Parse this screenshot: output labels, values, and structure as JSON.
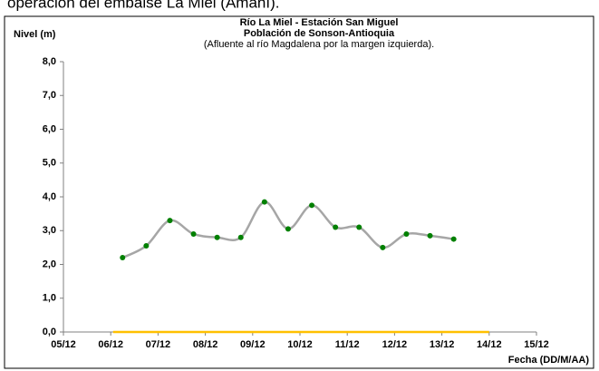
{
  "caption": "operación del embalse La Miel (Amaní).",
  "chart_data": {
    "type": "line",
    "title": "Río La Miel  - Estación San Miguel",
    "subtitle": "Población de Sonson-Antioquia",
    "note": "(Afluente al río Magdalena por la margen izquierda).",
    "y_label": "Nivel (m)",
    "x_label": "Fecha (DD/M/AA)",
    "xlim": [
      0,
      10
    ],
    "ylim": [
      0,
      8
    ],
    "xticks": [
      {
        "value": 0,
        "label": "05/12"
      },
      {
        "value": 1,
        "label": "06/12"
      },
      {
        "value": 2,
        "label": "07/12"
      },
      {
        "value": 3,
        "label": "08/12"
      },
      {
        "value": 4,
        "label": "09/12"
      },
      {
        "value": 5,
        "label": "10/12"
      },
      {
        "value": 6,
        "label": "11/12"
      },
      {
        "value": 7,
        "label": "12/12"
      },
      {
        "value": 8,
        "label": "13/12"
      },
      {
        "value": 9,
        "label": "14/12"
      },
      {
        "value": 10,
        "label": "15/12"
      }
    ],
    "yticks": [
      {
        "value": 0,
        "label": "0,0"
      },
      {
        "value": 1,
        "label": "1,0"
      },
      {
        "value": 2,
        "label": "2,0"
      },
      {
        "value": 3,
        "label": "3,0"
      },
      {
        "value": 4,
        "label": "4,0"
      },
      {
        "value": 5,
        "label": "5,0"
      },
      {
        "value": 6,
        "label": "6,0"
      },
      {
        "value": 7,
        "label": "7,0"
      },
      {
        "value": 8,
        "label": "8,0"
      }
    ],
    "series": [
      {
        "color": "#a6a6a6",
        "marker_color": "#008000",
        "smooth": true,
        "x": [
          1.25,
          1.75,
          2.25,
          2.75,
          3.25,
          3.75,
          4.25,
          4.75,
          5.25,
          5.75,
          6.25,
          6.75,
          7.25,
          7.75,
          8.25
        ],
        "values": [
          2.2,
          2.55,
          3.3,
          2.9,
          2.8,
          2.8,
          3.85,
          3.05,
          3.75,
          3.1,
          3.1,
          2.5,
          2.9,
          2.85,
          2.75
        ]
      },
      {
        "color": "#ffc000",
        "smooth": false,
        "x": [
          1.05,
          9
        ],
        "values": [
          0,
          0
        ]
      }
    ]
  }
}
